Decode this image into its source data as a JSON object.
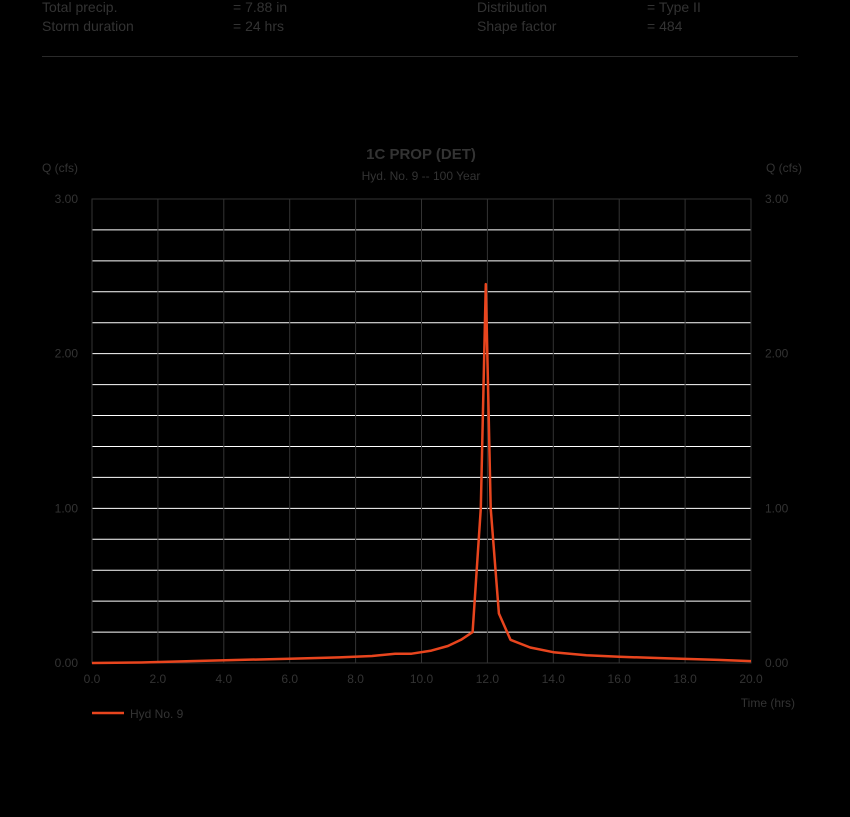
{
  "header": {
    "rows": [
      {
        "label": "Total precip.",
        "value": "=  7.88 in",
        "label2": "Distribution",
        "value2": "=  Type II"
      },
      {
        "label": "Storm duration",
        "value": "=  24 hrs",
        "label2": "Shape factor",
        "value2": "=  484"
      }
    ]
  },
  "chart_data": {
    "type": "line",
    "title": "1C PROP (DET)",
    "subtitle": "Hyd. No. 9 -- 100 Year",
    "ylabel_left": "Q (cfs)",
    "ylabel_right": "Q (cfs)",
    "xlabel": "Time (hrs)",
    "xlim": [
      0,
      20
    ],
    "ylim": [
      0,
      3
    ],
    "x_ticks": [
      "0.0",
      "2.0",
      "4.0",
      "6.0",
      "8.0",
      "10.0",
      "12.0",
      "14.0",
      "16.0",
      "18.0",
      "20.0"
    ],
    "y_ticks": [
      "0.00",
      "1.00",
      "2.00",
      "3.00"
    ],
    "grid": true,
    "legend_position": "bottom-left",
    "colors": {
      "series": "#e8451e",
      "grid": "#ffffff",
      "axis": "#333333"
    },
    "series": [
      {
        "name": "Hyd No. 9",
        "x": [
          0,
          1.5,
          3,
          4.5,
          6,
          7.5,
          8.5,
          9.2,
          9.7,
          10.3,
          10.8,
          11.2,
          11.55,
          11.8,
          11.95,
          12.1,
          12.35,
          12.7,
          13.3,
          14,
          15,
          16,
          17.5,
          19,
          20
        ],
        "y": [
          0,
          0.003,
          0.012,
          0.02,
          0.028,
          0.036,
          0.045,
          0.06,
          0.06,
          0.08,
          0.11,
          0.15,
          0.2,
          1.0,
          2.45,
          1.0,
          0.32,
          0.15,
          0.1,
          0.07,
          0.05,
          0.04,
          0.03,
          0.02,
          0.012
        ]
      }
    ]
  }
}
